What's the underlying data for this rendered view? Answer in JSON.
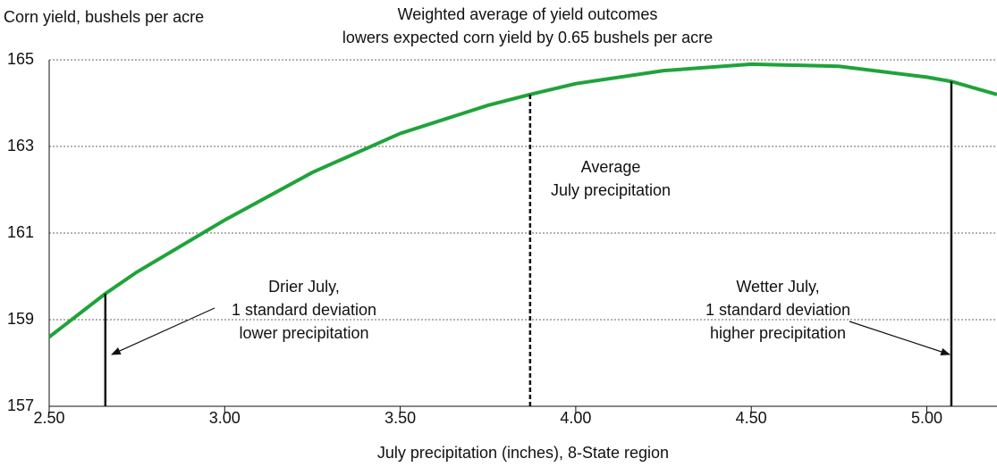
{
  "chart_data": {
    "type": "line",
    "title_lines": [
      "Weighted average of yield outcomes",
      "lowers expected corn yield by 0.65 bushels per acre"
    ],
    "y_label": "Corn yield, bushels per acre",
    "x_label": "July precipitation (inches), 8-State region",
    "x": [
      2.5,
      2.66,
      2.75,
      3.0,
      3.25,
      3.5,
      3.75,
      3.87,
      4.0,
      4.25,
      4.5,
      4.75,
      5.0,
      5.07,
      5.2
    ],
    "series": [
      {
        "name": "Corn yield",
        "color": "#1fa33b",
        "values": [
          158.6,
          159.6,
          160.1,
          161.3,
          162.4,
          163.3,
          163.95,
          164.2,
          164.45,
          164.75,
          164.9,
          164.85,
          164.6,
          164.5,
          164.2
        ]
      }
    ],
    "reference_lines": [
      {
        "x": 2.66,
        "y": 159.6,
        "dashed": false
      },
      {
        "x": 3.87,
        "y": 164.2,
        "dashed": true
      },
      {
        "x": 5.07,
        "y": 164.5,
        "dashed": false
      }
    ],
    "annotations": [
      {
        "lines": [
          "Drier July,",
          "1 standard deviation",
          "lower precipitation"
        ]
      },
      {
        "lines": [
          "Average",
          "July precipitation"
        ]
      },
      {
        "lines": [
          "Wetter July,",
          "1 standard deviation",
          "higher precipitation"
        ]
      }
    ],
    "xlim": [
      2.5,
      5.2
    ],
    "ylim": [
      157,
      165
    ],
    "xticks": [
      {
        "value": 2.5,
        "label": "2.50"
      },
      {
        "value": 3,
        "label": "3.00"
      },
      {
        "value": 3.5,
        "label": "3.50"
      },
      {
        "value": 4,
        "label": "4.00"
      },
      {
        "value": 4.5,
        "label": "4.50"
      },
      {
        "value": 5,
        "label": "5.00"
      }
    ],
    "yticks": [
      157,
      159,
      161,
      163,
      165
    ],
    "grid": true
  }
}
